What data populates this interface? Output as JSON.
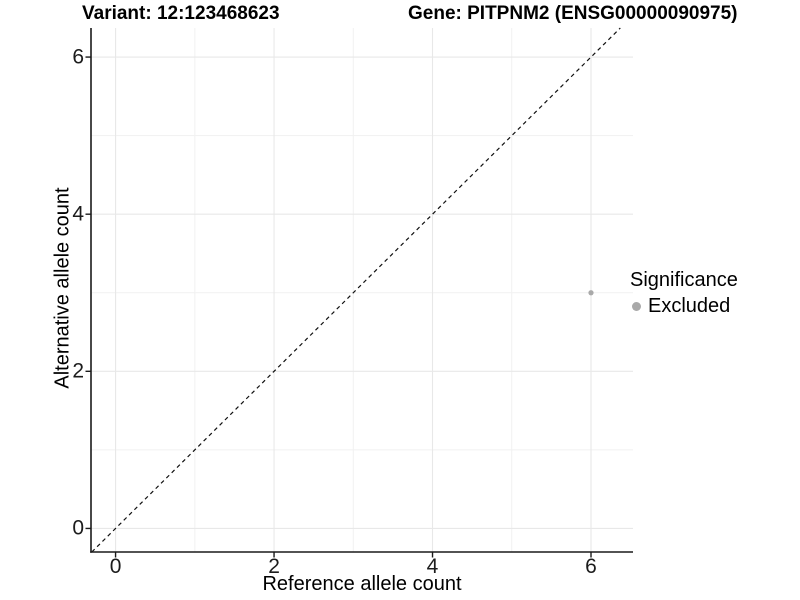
{
  "chart_data": {
    "type": "scatter",
    "variant_title": "Variant: 12:123468623",
    "gene_title": "Gene: PITPNM2 (ENSG00000090975)",
    "xlabel": "Reference allele count",
    "ylabel": "Alternative allele count",
    "xlim": [
      -0.31,
      6.53
    ],
    "ylim": [
      -0.3,
      6.37
    ],
    "x_ticks": [
      0,
      2,
      4,
      6
    ],
    "y_ticks": [
      0,
      2,
      4,
      6
    ],
    "x_minor_gridlines": [
      1,
      3,
      5
    ],
    "y_minor_gridlines": [
      1,
      3,
      5
    ],
    "grid": "on",
    "legend_position": "right",
    "series": [
      {
        "name": "Excluded",
        "marker": "circle",
        "color": "#a9a9a9",
        "points": [
          {
            "x": 6,
            "y": 3
          }
        ]
      }
    ],
    "reference_line": {
      "kind": "identity",
      "slope": 1,
      "intercept": 0,
      "style": "dashed",
      "color": "#111111"
    }
  },
  "legend": {
    "title": "Significance",
    "items": [
      {
        "label": "Excluded",
        "color": "#a9a9a9",
        "marker": "circle"
      }
    ]
  },
  "colors": {
    "background": "#ffffff",
    "axis_line": "#1a1a1a",
    "tick_mark": "#1a1a1a",
    "tick_text": "#1c1c1c",
    "grid_major": "#e8e8e8",
    "grid_minor": "#f1f1f1",
    "title_text": "#000000"
  }
}
